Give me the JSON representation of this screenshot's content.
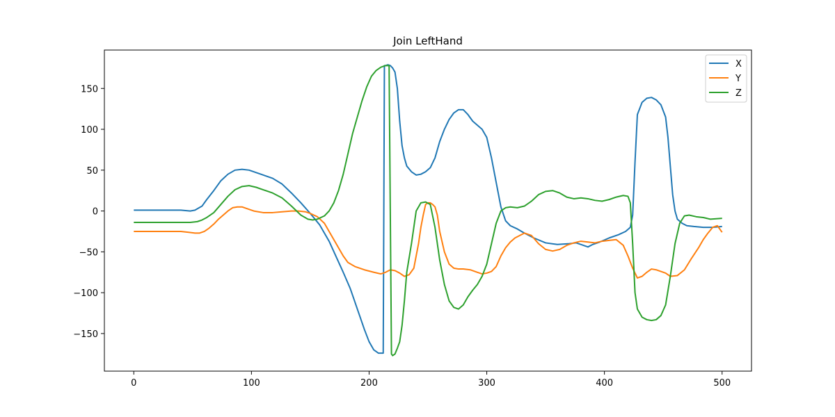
{
  "chart_data": {
    "type": "line",
    "title": "Join LeftHand",
    "xlabel": "",
    "ylabel": "",
    "xlim": [
      -25,
      525
    ],
    "ylim": [
      -196,
      197
    ],
    "xticks": [
      0,
      100,
      200,
      300,
      400,
      500
    ],
    "yticks": [
      -150,
      -100,
      -50,
      0,
      50,
      100,
      150
    ],
    "grid": false,
    "legend_position": "top-right",
    "series": [
      {
        "name": "X",
        "color": "#1f77b4",
        "x": [
          0,
          10,
          20,
          30,
          40,
          48,
          52,
          58,
          62,
          68,
          74,
          80,
          86,
          92,
          98,
          104,
          110,
          118,
          126,
          134,
          142,
          150,
          158,
          166,
          172,
          178,
          184,
          190,
          196,
          200,
          204,
          208,
          210,
          212,
          213,
          214,
          216,
          218,
          220,
          222,
          224,
          226,
          228,
          230,
          232,
          236,
          240,
          244,
          248,
          252,
          256,
          260,
          264,
          268,
          272,
          276,
          280,
          284,
          288,
          292,
          296,
          300,
          304,
          308,
          312,
          316,
          320,
          326,
          332,
          340,
          350,
          360,
          370,
          376,
          382,
          386,
          390,
          396,
          404,
          412,
          418,
          422,
          424,
          426,
          428,
          432,
          436,
          440,
          444,
          448,
          452,
          454,
          456,
          458,
          460,
          462,
          466,
          470,
          476,
          484,
          492,
          500
        ],
        "y": [
          1,
          1,
          1,
          1,
          1,
          0,
          1,
          6,
          14,
          25,
          37,
          45,
          50,
          51,
          50,
          47,
          44,
          40,
          33,
          22,
          10,
          -3,
          -17,
          -37,
          -56,
          -75,
          -95,
          -120,
          -145,
          -160,
          -170,
          -174,
          -174,
          -174,
          178,
          178,
          179,
          178,
          175,
          170,
          150,
          110,
          80,
          65,
          55,
          48,
          44,
          45,
          48,
          53,
          65,
          85,
          100,
          112,
          120,
          124,
          124,
          118,
          110,
          105,
          100,
          90,
          65,
          35,
          5,
          -12,
          -18,
          -22,
          -27,
          -33,
          -39,
          -41,
          -40,
          -39,
          -42,
          -44,
          -41,
          -38,
          -33,
          -29,
          -25,
          -20,
          -5,
          60,
          118,
          133,
          138,
          139,
          136,
          130,
          115,
          90,
          55,
          20,
          0,
          -10,
          -15,
          -18,
          -19,
          -20,
          -20,
          -19
        ]
      },
      {
        "name": "Y",
        "color": "#ff7f0e",
        "x": [
          0,
          10,
          20,
          30,
          40,
          46,
          52,
          56,
          60,
          64,
          68,
          72,
          76,
          80,
          84,
          88,
          92,
          96,
          102,
          110,
          118,
          126,
          134,
          140,
          146,
          150,
          156,
          162,
          166,
          170,
          174,
          178,
          182,
          188,
          196,
          204,
          210,
          214,
          218,
          222,
          226,
          230,
          234,
          238,
          242,
          244,
          246,
          248,
          250,
          252,
          254,
          256,
          258,
          260,
          264,
          268,
          272,
          276,
          280,
          286,
          292,
          296,
          300,
          304,
          308,
          312,
          316,
          320,
          324,
          328,
          332,
          338,
          344,
          350,
          356,
          362,
          368,
          374,
          380,
          386,
          392,
          398,
          404,
          410,
          416,
          420,
          424,
          428,
          432,
          436,
          440,
          444,
          448,
          452,
          456,
          462,
          468,
          474,
          480,
          484,
          488,
          492,
          496,
          500
        ],
        "y": [
          -25,
          -25,
          -25,
          -25,
          -25,
          -26,
          -27,
          -27,
          -25,
          -21,
          -16,
          -10,
          -5,
          0,
          4,
          5,
          5,
          3,
          0,
          -2,
          -2,
          -1,
          0,
          0,
          -1,
          -3,
          -7,
          -15,
          -25,
          -35,
          -45,
          -55,
          -63,
          -68,
          -72,
          -75,
          -77,
          -75,
          -72,
          -73,
          -76,
          -80,
          -78,
          -70,
          -40,
          -20,
          -5,
          8,
          10,
          10,
          8,
          5,
          -5,
          -25,
          -50,
          -65,
          -70,
          -71,
          -71,
          -72,
          -75,
          -77,
          -76,
          -74,
          -68,
          -55,
          -45,
          -38,
          -33,
          -30,
          -27,
          -30,
          -40,
          -47,
          -49,
          -47,
          -42,
          -39,
          -37,
          -38,
          -39,
          -37,
          -36,
          -35,
          -42,
          -55,
          -70,
          -82,
          -80,
          -75,
          -71,
          -72,
          -74,
          -76,
          -80,
          -79,
          -72,
          -58,
          -45,
          -35,
          -27,
          -20,
          -18,
          -26
        ]
      },
      {
        "name": "Z",
        "color": "#2ca02c",
        "x": [
          0,
          10,
          20,
          30,
          40,
          48,
          54,
          58,
          62,
          68,
          74,
          80,
          86,
          92,
          98,
          104,
          110,
          118,
          126,
          134,
          142,
          148,
          152,
          156,
          162,
          166,
          170,
          174,
          178,
          182,
          186,
          190,
          194,
          198,
          202,
          206,
          210,
          214,
          216,
          217,
          218,
          219,
          220,
          222,
          224,
          226,
          228,
          230,
          232,
          236,
          240,
          244,
          248,
          252,
          256,
          260,
          264,
          268,
          272,
          276,
          280,
          284,
          288,
          292,
          296,
          300,
          304,
          308,
          312,
          316,
          320,
          326,
          332,
          338,
          344,
          350,
          356,
          362,
          368,
          374,
          380,
          386,
          392,
          398,
          404,
          410,
          416,
          420,
          422,
          424,
          426,
          428,
          432,
          436,
          440,
          444,
          448,
          452,
          456,
          460,
          464,
          468,
          472,
          478,
          484,
          490,
          500
        ],
        "y": [
          -14,
          -14,
          -14,
          -14,
          -14,
          -14,
          -13,
          -11,
          -8,
          -2,
          8,
          18,
          26,
          30,
          31,
          29,
          26,
          22,
          16,
          6,
          -5,
          -10,
          -11,
          -10,
          -6,
          0,
          10,
          25,
          45,
          70,
          95,
          115,
          135,
          152,
          165,
          172,
          176,
          178,
          178,
          178,
          0,
          -175,
          -177,
          -175,
          -168,
          -160,
          -140,
          -110,
          -75,
          -40,
          0,
          10,
          11,
          8,
          -20,
          -60,
          -90,
          -110,
          -118,
          -120,
          -115,
          -105,
          -97,
          -90,
          -80,
          -65,
          -40,
          -15,
          0,
          4,
          5,
          4,
          6,
          12,
          20,
          24,
          25,
          22,
          17,
          15,
          16,
          15,
          13,
          12,
          14,
          17,
          19,
          18,
          10,
          -40,
          -100,
          -120,
          -130,
          -133,
          -134,
          -133,
          -128,
          -115,
          -80,
          -40,
          -15,
          -6,
          -5,
          -7,
          -8,
          -10,
          -9
        ]
      }
    ]
  }
}
